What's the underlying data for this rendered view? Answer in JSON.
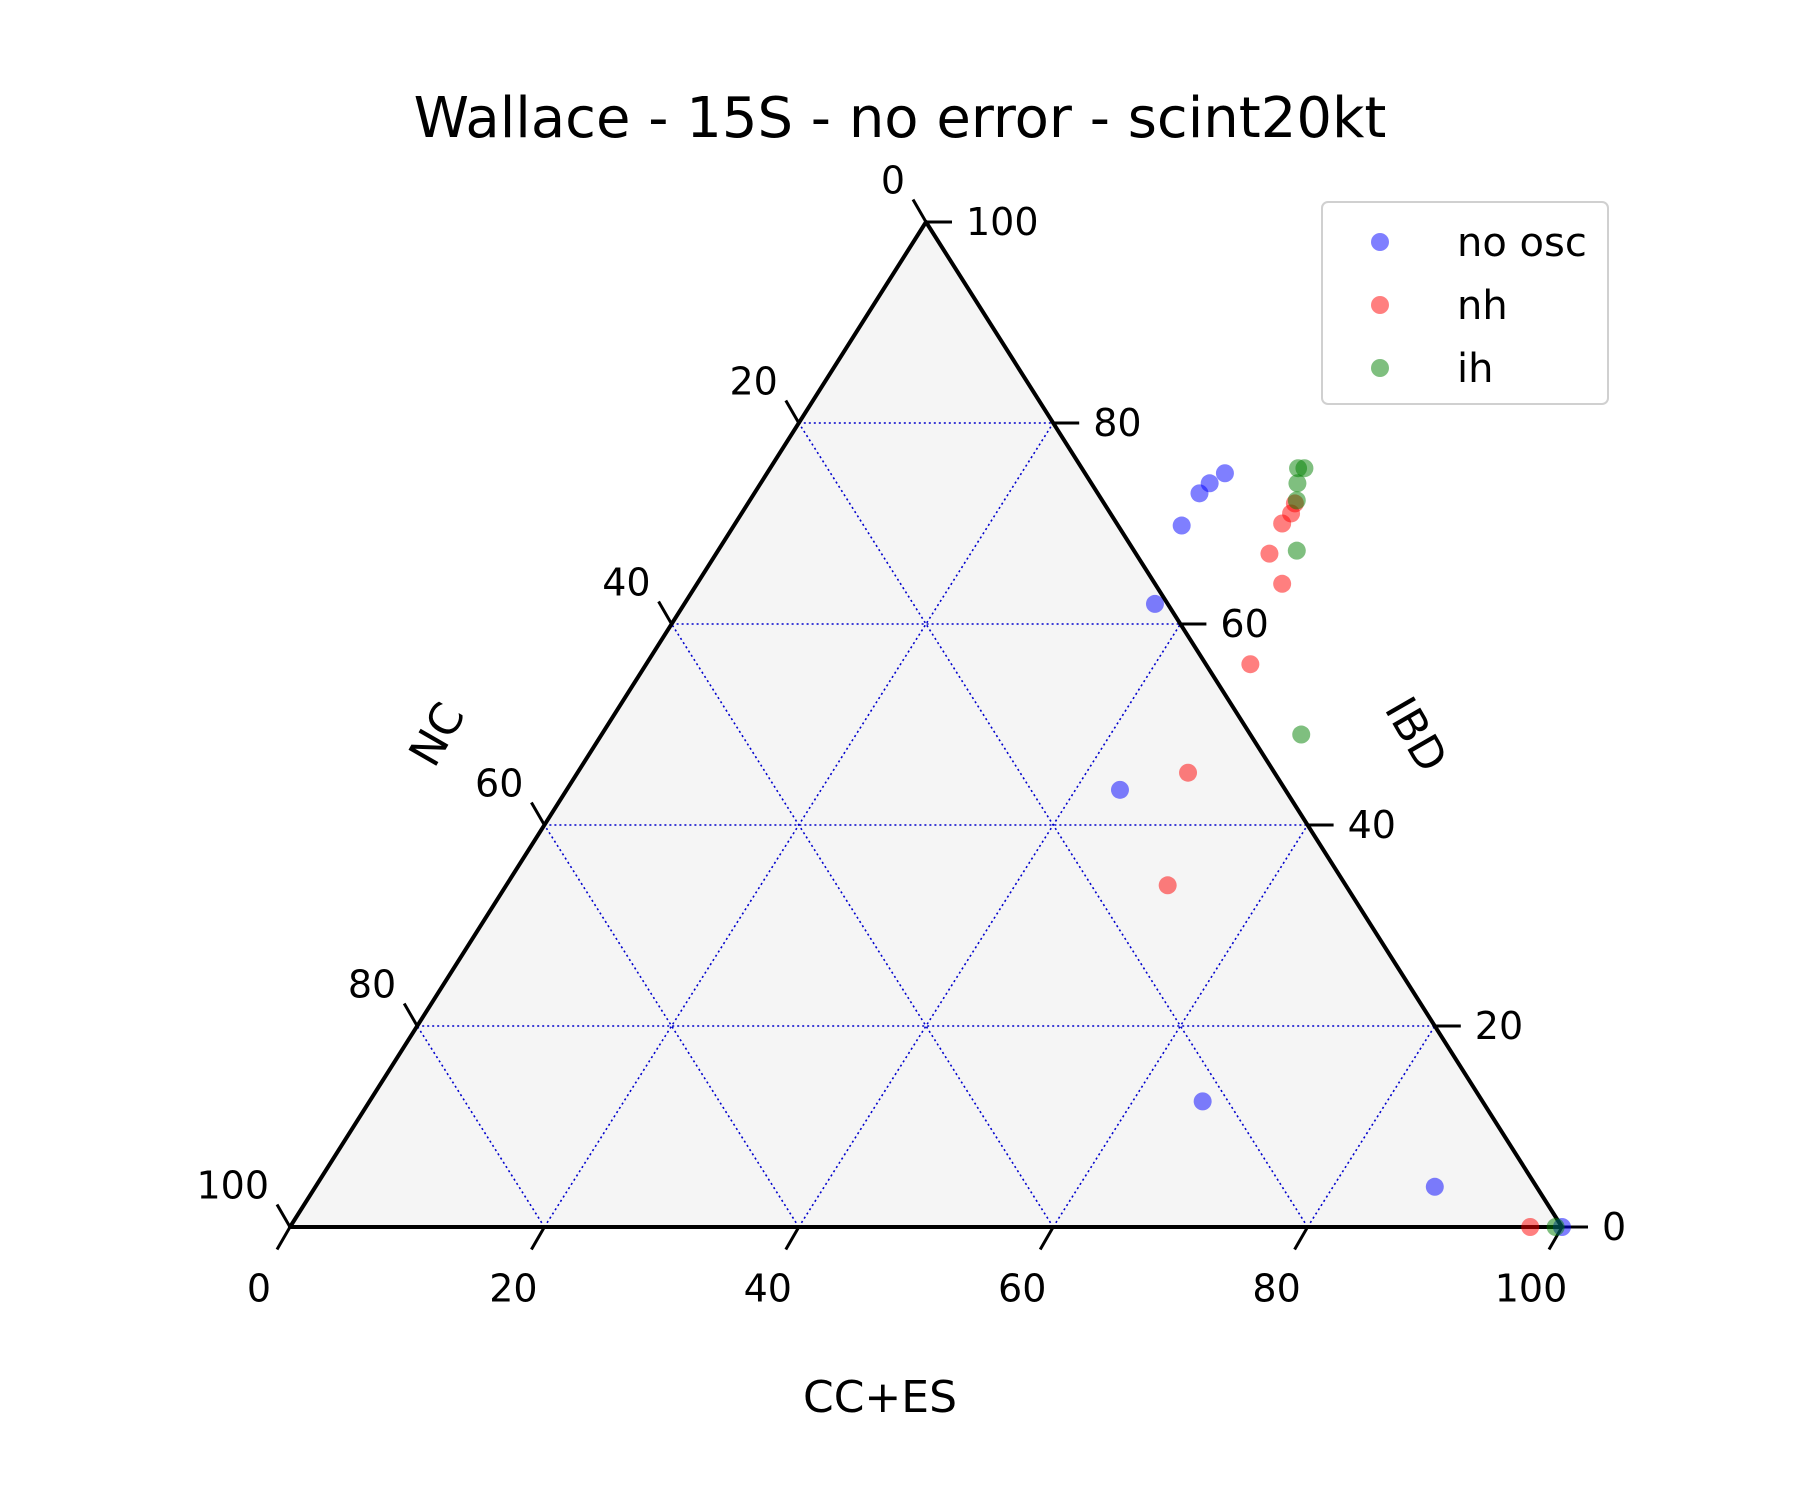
{
  "chart_data": {
    "type": "scatter",
    "subtype": "ternary",
    "title": "Wallace - 15S - no error - scint20kt",
    "axes": {
      "bottom": {
        "label": "CC+ES",
        "ticks": [
          "0",
          "20",
          "40",
          "60",
          "80",
          "100"
        ],
        "range": [
          0,
          100
        ]
      },
      "right": {
        "label": "IBD",
        "ticks": [
          "0",
          "20",
          "40",
          "60",
          "80",
          "100"
        ],
        "range": [
          0,
          100
        ]
      },
      "left": {
        "label": "NC",
        "ticks": [
          "0",
          "20",
          "40",
          "60",
          "80",
          "100"
        ],
        "range": [
          0,
          100
        ]
      }
    },
    "grid": true,
    "grid_step": 20,
    "legend_position": "top-right",
    "series": [
      {
        "name": "no osc",
        "color": "#0000ff",
        "points": [
          {
            "ccs": 36,
            "ibd": 75
          },
          {
            "ccs": 35.3,
            "ibd": 74
          },
          {
            "ccs": 35,
            "ibd": 73
          },
          {
            "ccs": 35.2,
            "ibd": 69.8
          },
          {
            "ccs": 37,
            "ibd": 62
          },
          {
            "ccs": 43.5,
            "ibd": 43.5
          },
          {
            "ccs": 65.5,
            "ibd": 12.5
          },
          {
            "ccs": 88,
            "ibd": 4
          },
          {
            "ccs": 100,
            "ibd": 0
          }
        ]
      },
      {
        "name": "nh",
        "color": "#ff0000",
        "points": [
          {
            "ccs": 43,
            "ibd": 72
          },
          {
            "ccs": 43.2,
            "ibd": 71
          },
          {
            "ccs": 43,
            "ibd": 70
          },
          {
            "ccs": 43.5,
            "ibd": 67
          },
          {
            "ccs": 46,
            "ibd": 64
          },
          {
            "ccs": 47.5,
            "ibd": 56
          },
          {
            "ccs": 48,
            "ibd": 45.2
          },
          {
            "ccs": 52,
            "ibd": 34
          },
          {
            "ccs": 97.5,
            "ibd": 0
          }
        ]
      },
      {
        "name": "ih",
        "color": "#008000",
        "points": [
          {
            "ccs": 42,
            "ibd": 75.5
          },
          {
            "ccs": 41.5,
            "ibd": 75.5
          },
          {
            "ccs": 42.2,
            "ibd": 74
          },
          {
            "ccs": 43,
            "ibd": 72.3
          },
          {
            "ccs": 45.5,
            "ibd": 67.3
          },
          {
            "ccs": 55,
            "ibd": 49
          },
          {
            "ccs": 99.5,
            "ibd": 0
          }
        ]
      }
    ]
  }
}
